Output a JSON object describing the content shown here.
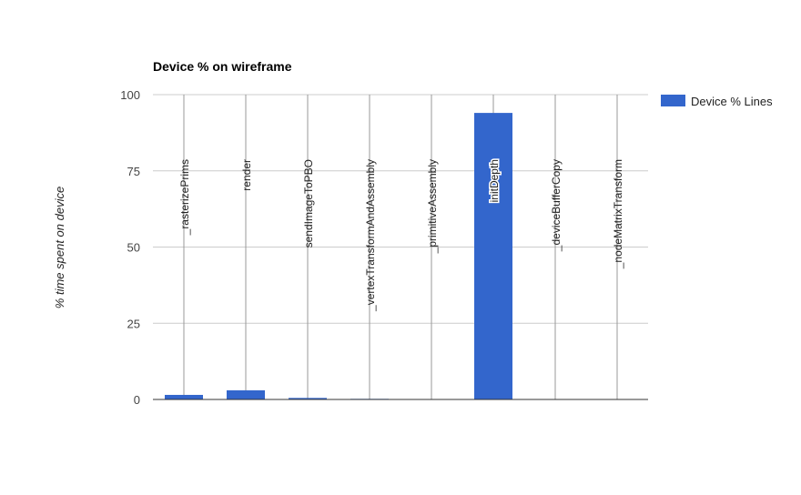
{
  "chart_data": {
    "type": "bar",
    "title": "Device % on wireframe",
    "xlabel": "",
    "ylabel": "% time spent on device",
    "ylim": [
      0,
      100
    ],
    "yticks": [
      0,
      25,
      50,
      75,
      100
    ],
    "grid": true,
    "legend_position": "right",
    "categories": [
      "_rasterizePrims",
      "render",
      "sendImageToPBO",
      "_vertexTransformAndAssembly",
      "_primitiveAssembly",
      "initDepth",
      "_deviceBufferCopy",
      "_nodeMatrixTransform"
    ],
    "series": [
      {
        "name": "Device % Lines",
        "color": "#3366cc",
        "values": [
          1.5,
          3.0,
          0.5,
          0.2,
          0.1,
          94.0,
          0.1,
          0.1
        ]
      }
    ]
  }
}
